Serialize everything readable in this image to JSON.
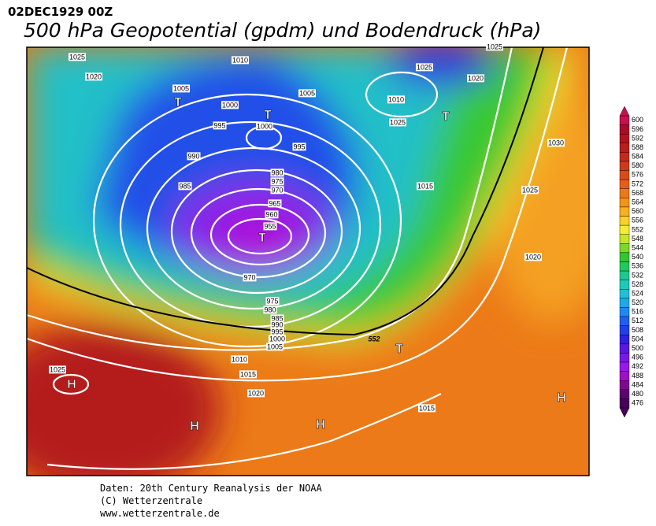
{
  "header": {
    "date": "02DEC1929 00Z",
    "title": "500 hPa Geopotential (gpdm) und Bodendruck (hPa)"
  },
  "isobar_labels": [
    1025,
    1010,
    1020,
    1005,
    1005,
    1000,
    995,
    1000,
    995,
    990,
    985,
    980,
    975,
    970,
    965,
    960,
    955,
    970,
    975,
    980,
    985,
    990,
    995,
    1000,
    1005,
    1010,
    1015,
    1020,
    1025,
    1025,
    1020,
    1010,
    1025,
    1015,
    1030,
    1025,
    1020,
    1015,
    1025
  ],
  "contour_label": 552,
  "pressure_centers": [
    "T",
    "T",
    "T",
    "T",
    "T",
    "H",
    "H",
    "H",
    "H"
  ],
  "colorbar": [
    {
      "value": 600,
      "color": "#c8104e"
    },
    {
      "value": 596,
      "color": "#a80c28"
    },
    {
      "value": 592,
      "color": "#b01420"
    },
    {
      "value": 588,
      "color": "#b81e1e"
    },
    {
      "value": 584,
      "color": "#c42a1c"
    },
    {
      "value": 580,
      "color": "#d0381c"
    },
    {
      "value": 576,
      "color": "#dc4a1a"
    },
    {
      "value": 572,
      "color": "#e65e18"
    },
    {
      "value": 568,
      "color": "#ee7818"
    },
    {
      "value": 564,
      "color": "#f49418"
    },
    {
      "value": 560,
      "color": "#f8b020"
    },
    {
      "value": 556,
      "color": "#fcd02a"
    },
    {
      "value": 552,
      "color": "#f4ee30"
    },
    {
      "value": 548,
      "color": "#c4e430"
    },
    {
      "value": 544,
      "color": "#7cd82c"
    },
    {
      "value": 540,
      "color": "#30c830"
    },
    {
      "value": 536,
      "color": "#20c860"
    },
    {
      "value": 532,
      "color": "#20c890"
    },
    {
      "value": 528,
      "color": "#20c8b8"
    },
    {
      "value": 524,
      "color": "#20c0d8"
    },
    {
      "value": 520,
      "color": "#20a8e8"
    },
    {
      "value": 516,
      "color": "#2088f0"
    },
    {
      "value": 512,
      "color": "#2060f0"
    },
    {
      "value": 508,
      "color": "#2040e8"
    },
    {
      "value": 504,
      "color": "#3020e0"
    },
    {
      "value": 500,
      "color": "#5818e0"
    },
    {
      "value": 496,
      "color": "#7818e8"
    },
    {
      "value": 492,
      "color": "#9818e8"
    },
    {
      "value": 488,
      "color": "#a010c0"
    },
    {
      "value": 484,
      "color": "#800890"
    },
    {
      "value": 480,
      "color": "#600070"
    },
    {
      "value": 476,
      "color": "#480058"
    }
  ],
  "footer": [
    "Daten: 20th Century Reanalysis der NOAA",
    "(C) Wetterzentrale",
    "www.wetterzentrale.de"
  ]
}
